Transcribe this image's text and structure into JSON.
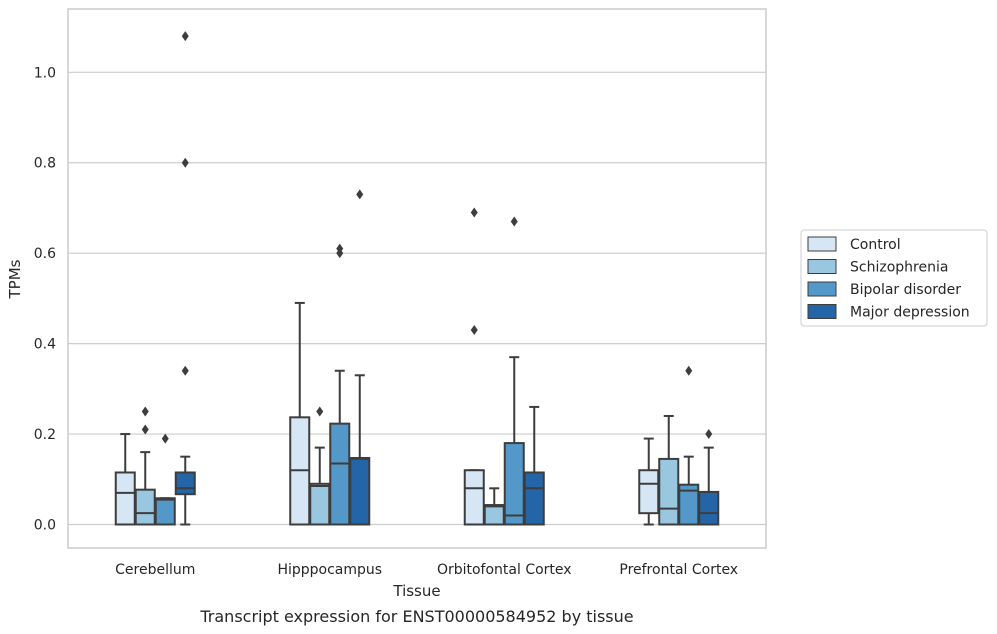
{
  "chart_data": {
    "type": "boxplot",
    "caption": "Transcript expression for ENST00000584952 by tissue",
    "xlabel": "Tissue",
    "ylabel": "TPMs",
    "ylim": [
      -0.052,
      1.14
    ],
    "yticks": [
      "0.0",
      "0.2",
      "0.4",
      "0.6",
      "0.8",
      "1.0"
    ],
    "grid": "horizontal",
    "legend_position": "right",
    "categories": [
      "Cerebellum",
      "Hipppocampus",
      "Orbitofontal Cortex",
      "Prefrontal Cortex"
    ],
    "series": [
      {
        "name": "Control",
        "color": "#d6e6f4",
        "boxes": [
          {
            "whislo": 0.0,
            "q1": 0.0,
            "med": 0.07,
            "q3": 0.115,
            "whishi": 0.2,
            "fliers": []
          },
          {
            "whislo": 0.0,
            "q1": 0.0,
            "med": 0.12,
            "q3": 0.237,
            "whishi": 0.49,
            "fliers": []
          },
          {
            "whislo": 0.0,
            "q1": 0.0,
            "med": 0.08,
            "q3": 0.12,
            "whishi": 0.12,
            "fliers": [
              0.43,
              0.69
            ]
          },
          {
            "whislo": 0.0,
            "q1": 0.025,
            "med": 0.09,
            "q3": 0.12,
            "whishi": 0.19,
            "fliers": []
          }
        ]
      },
      {
        "name": "Schizophrenia",
        "color": "#9ac7e0",
        "boxes": [
          {
            "whislo": 0.0,
            "q1": 0.0,
            "med": 0.025,
            "q3": 0.077,
            "whishi": 0.16,
            "fliers": [
              0.21,
              0.25
            ]
          },
          {
            "whislo": 0.0,
            "q1": 0.0,
            "med": 0.085,
            "q3": 0.09,
            "whishi": 0.17,
            "fliers": [
              0.25
            ]
          },
          {
            "whislo": 0.0,
            "q1": 0.0,
            "med": 0.04,
            "q3": 0.043,
            "whishi": 0.08,
            "fliers": []
          },
          {
            "whislo": 0.0,
            "q1": 0.0,
            "med": 0.035,
            "q3": 0.145,
            "whishi": 0.24,
            "fliers": []
          }
        ]
      },
      {
        "name": "Bipolar disorder",
        "color": "#5497c9",
        "boxes": [
          {
            "whislo": 0.0,
            "q1": 0.0,
            "med": 0.055,
            "q3": 0.058,
            "whishi": 0.058,
            "fliers": [
              0.19
            ]
          },
          {
            "whislo": 0.0,
            "q1": 0.0,
            "med": 0.135,
            "q3": 0.223,
            "whishi": 0.34,
            "fliers": [
              0.6,
              0.61
            ]
          },
          {
            "whislo": 0.0,
            "q1": 0.0,
            "med": 0.02,
            "q3": 0.18,
            "whishi": 0.37,
            "fliers": [
              0.67
            ]
          },
          {
            "whislo": 0.0,
            "q1": 0.0,
            "med": 0.075,
            "q3": 0.088,
            "whishi": 0.15,
            "fliers": [
              0.34
            ]
          }
        ]
      },
      {
        "name": "Major depression",
        "color": "#2465a8",
        "boxes": [
          {
            "whislo": 0.0,
            "q1": 0.067,
            "med": 0.08,
            "q3": 0.115,
            "whishi": 0.15,
            "fliers": [
              0.34,
              0.8,
              1.08
            ]
          },
          {
            "whislo": 0.0,
            "q1": 0.0,
            "med": 0.145,
            "q3": 0.147,
            "whishi": 0.33,
            "fliers": [
              0.73
            ]
          },
          {
            "whislo": 0.0,
            "q1": 0.0,
            "med": 0.08,
            "q3": 0.115,
            "whishi": 0.26,
            "fliers": []
          },
          {
            "whislo": 0.0,
            "q1": 0.0,
            "med": 0.025,
            "q3": 0.072,
            "whishi": 0.17,
            "fliers": [
              0.2
            ]
          }
        ]
      }
    ]
  }
}
